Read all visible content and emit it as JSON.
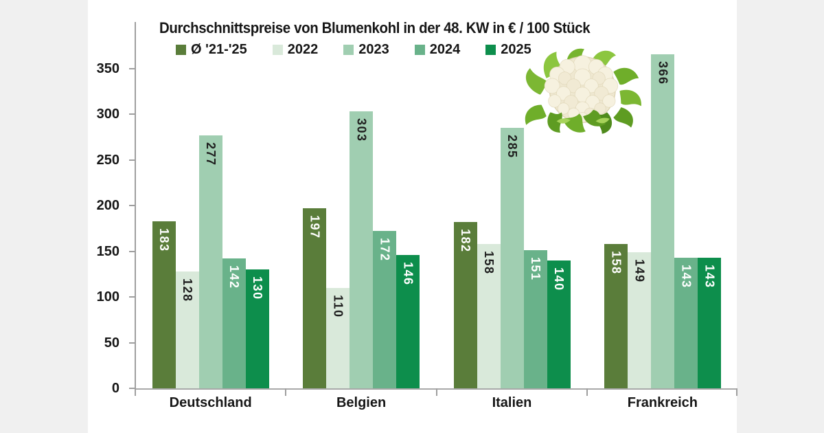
{
  "page": {
    "outer_background": "#f0f0f0",
    "panel_background": "#ffffff"
  },
  "chart_data": {
    "type": "bar",
    "title": "Durchschnittspreise von Blumenkohl in der 48. KW in € / 100 Stück",
    "categories": [
      "Deutschland",
      "Belgien",
      "Italien",
      "Frankreich"
    ],
    "series": [
      {
        "name": "Ø '21-'25",
        "color": "#5a7d3a",
        "label_color": "#ffffff",
        "values": [
          183,
          197,
          182,
          158
        ]
      },
      {
        "name": "2022",
        "color": "#d9e9da",
        "label_color": "#1f1f1f",
        "values": [
          128,
          110,
          158,
          149
        ]
      },
      {
        "name": "2023",
        "color": "#a0ceb1",
        "label_color": "#1f1f1f",
        "values": [
          277,
          303,
          285,
          366
        ]
      },
      {
        "name": "2024",
        "color": "#69b28a",
        "label_color": "#ffffff",
        "values": [
          142,
          172,
          151,
          143
        ]
      },
      {
        "name": "2025",
        "color": "#0d8e4c",
        "label_color": "#ffffff",
        "values": [
          130,
          146,
          140,
          143
        ]
      }
    ],
    "yticks": [
      0,
      50,
      100,
      150,
      200,
      250,
      300,
      350
    ],
    "ylim": [
      0,
      380
    ],
    "grid": false,
    "legend_position": "top",
    "value_labels": "rotated-90-inside-bar-top",
    "axis_color": "#9e9e9e",
    "text_color": "#161616"
  },
  "decoration": {
    "image": "cauliflower-photo"
  }
}
